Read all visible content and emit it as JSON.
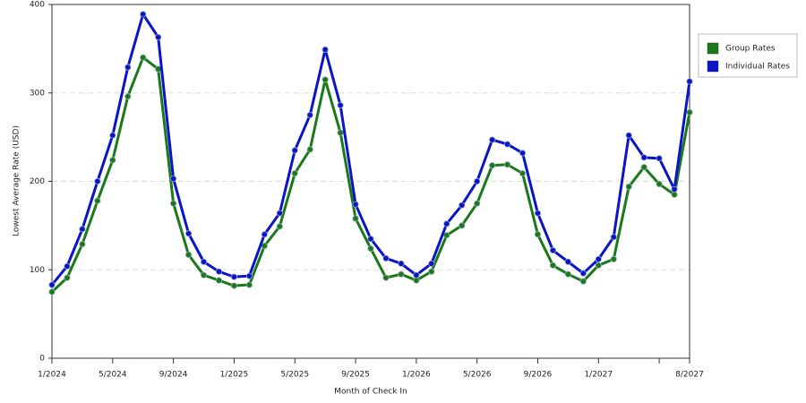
{
  "chart_data": {
    "type": "line",
    "x_label": "Month of Check In",
    "y_label": "Lowest Average Rate (USD)",
    "categories": [
      "1/2024",
      null,
      null,
      null,
      "5/2024",
      null,
      null,
      null,
      "9/2024",
      null,
      null,
      null,
      "1/2025",
      null,
      null,
      null,
      "5/2025",
      null,
      null,
      null,
      "9/2025",
      null,
      null,
      null,
      "1/2026",
      null,
      null,
      null,
      "5/2026",
      null,
      null,
      null,
      "9/2026",
      null,
      null,
      null,
      "1/2027",
      null,
      null,
      null,
      null,
      null,
      "8/2027"
    ],
    "series": [
      {
        "name": "Group Rates",
        "color": "#1a7a1a",
        "values": [
          75,
          91,
          129,
          178,
          224,
          296,
          340,
          327,
          175,
          117,
          94,
          88,
          82,
          83,
          127,
          149,
          209,
          236,
          315,
          255,
          158,
          124,
          91,
          95,
          88,
          98,
          139,
          150,
          175,
          218,
          219,
          209,
          140,
          105,
          95,
          87,
          105,
          112,
          194,
          216,
          197,
          185,
          278
        ]
      },
      {
        "name": "Individual Rates",
        "color": "#0a14c8",
        "values": [
          83,
          104,
          146,
          200,
          252,
          329,
          389,
          363,
          203,
          141,
          109,
          98,
          92,
          93,
          140,
          164,
          235,
          275,
          349,
          286,
          174,
          135,
          113,
          107,
          94,
          107,
          152,
          173,
          200,
          247,
          242,
          232,
          164,
          122,
          109,
          96,
          112,
          137,
          252,
          227,
          226,
          191,
          313
        ]
      }
    ],
    "ylim": [
      0,
      400
    ],
    "yticks": [
      0,
      100,
      200,
      300,
      400
    ],
    "grid": true,
    "legend": "right"
  }
}
